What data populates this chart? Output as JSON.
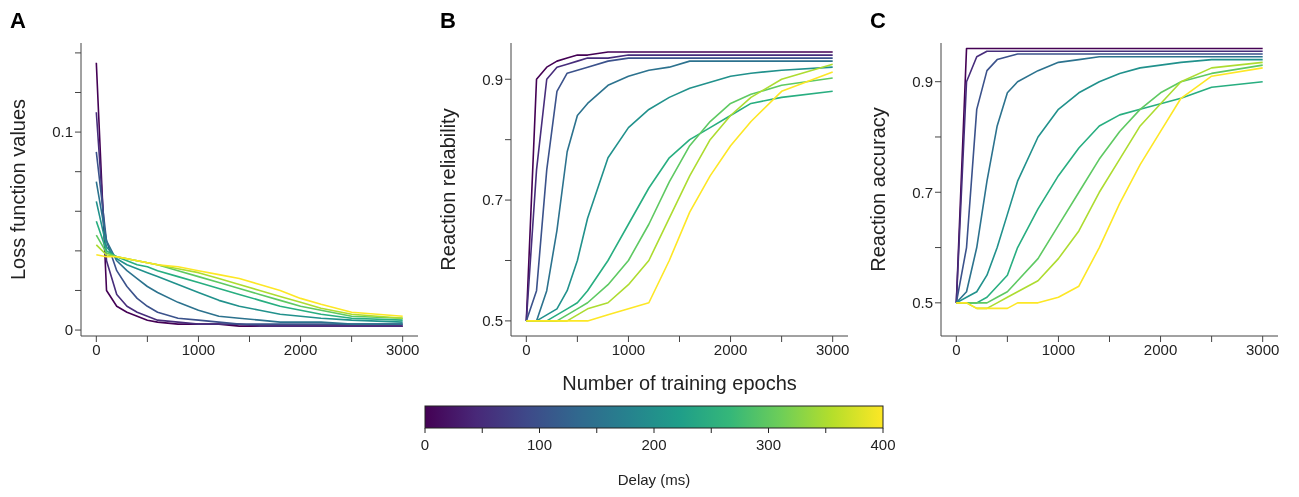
{
  "chart_data": [
    {
      "type": "line",
      "title": "A",
      "ylabel": "Loss function values",
      "x": [
        0,
        100,
        200,
        300,
        400,
        500,
        600,
        800,
        1000,
        1200,
        1400,
        1600,
        1800,
        2000,
        2200,
        2500,
        3000
      ],
      "xlim": [
        -150,
        3150
      ],
      "xticks": [
        0,
        {
          "value": 500,
          "label": null
        },
        1000,
        {
          "value": 1500,
          "label": null
        },
        2000,
        {
          "value": 2500,
          "label": null
        },
        3000
      ],
      "ylim": [
        -0.003,
        0.145
      ],
      "yticks": [
        0,
        {
          "value": 0.02,
          "label": null
        },
        {
          "value": 0.04,
          "label": null
        },
        {
          "value": 0.06,
          "label": null
        },
        {
          "value": 0.08,
          "label": null
        },
        0.1,
        {
          "value": 0.12,
          "label": null
        },
        {
          "value": 0.14,
          "label": null
        }
      ],
      "series": [
        {
          "color": "#440154",
          "values": [
            0.135,
            0.02,
            0.012,
            0.009,
            0.007,
            0.005,
            0.004,
            0.003,
            0.003,
            0.003,
            0.002,
            0.002,
            0.002,
            0.002,
            0.002,
            0.002,
            0.002
          ]
        },
        {
          "color": "#472d7b",
          "values": [
            0.11,
            0.035,
            0.018,
            0.012,
            0.009,
            0.007,
            0.005,
            0.004,
            0.003,
            0.003,
            0.003,
            0.002,
            0.002,
            0.002,
            0.002,
            0.002,
            0.002
          ]
        },
        {
          "color": "#3b528b",
          "values": [
            0.09,
            0.045,
            0.03,
            0.022,
            0.016,
            0.012,
            0.009,
            0.006,
            0.005,
            0.004,
            0.003,
            0.003,
            0.003,
            0.003,
            0.003,
            0.003,
            0.003
          ]
        },
        {
          "color": "#2c728e",
          "values": [
            0.075,
            0.045,
            0.035,
            0.03,
            0.026,
            0.022,
            0.019,
            0.014,
            0.01,
            0.007,
            0.006,
            0.005,
            0.004,
            0.004,
            0.004,
            0.003,
            0.003
          ]
        },
        {
          "color": "#21918c",
          "values": [
            0.065,
            0.042,
            0.036,
            0.033,
            0.031,
            0.029,
            0.027,
            0.023,
            0.019,
            0.015,
            0.012,
            0.01,
            0.008,
            0.007,
            0.006,
            0.005,
            0.004
          ]
        },
        {
          "color": "#28ae80",
          "values": [
            0.055,
            0.04,
            0.037,
            0.035,
            0.033,
            0.032,
            0.03,
            0.027,
            0.024,
            0.021,
            0.018,
            0.015,
            0.012,
            0.01,
            0.008,
            0.006,
            0.005
          ]
        },
        {
          "color": "#5ec962",
          "values": [
            0.048,
            0.039,
            0.037,
            0.036,
            0.035,
            0.034,
            0.033,
            0.03,
            0.027,
            0.024,
            0.021,
            0.018,
            0.015,
            0.012,
            0.01,
            0.007,
            0.006
          ]
        },
        {
          "color": "#addc30",
          "values": [
            0.043,
            0.038,
            0.037,
            0.036,
            0.035,
            0.034,
            0.033,
            0.031,
            0.029,
            0.026,
            0.023,
            0.02,
            0.017,
            0.014,
            0.011,
            0.008,
            0.006
          ]
        },
        {
          "color": "#fde725",
          "values": [
            0.038,
            0.037,
            0.037,
            0.036,
            0.035,
            0.034,
            0.033,
            0.032,
            0.03,
            0.028,
            0.026,
            0.023,
            0.02,
            0.016,
            0.013,
            0.009,
            0.007
          ]
        }
      ]
    },
    {
      "type": "line",
      "title": "B",
      "xlabel": "Number of training epochs",
      "ylabel": "Reaction reliability",
      "clabel": "Delay (ms)",
      "clim": [
        0,
        400
      ],
      "cticks": [
        0,
        {
          "value": 50,
          "label": null
        },
        100,
        {
          "value": 150,
          "label": null
        },
        200,
        {
          "value": 250,
          "label": null
        },
        300,
        {
          "value": 350,
          "label": null
        },
        400
      ],
      "x": [
        0,
        100,
        200,
        300,
        400,
        500,
        600,
        800,
        1000,
        1200,
        1400,
        1600,
        1800,
        2000,
        2200,
        2500,
        3000
      ],
      "xlim": [
        -150,
        3150
      ],
      "xticks": [
        0,
        {
          "value": 500,
          "label": null
        },
        1000,
        {
          "value": 1500,
          "label": null
        },
        2000,
        {
          "value": 2500,
          "label": null
        },
        3000
      ],
      "ylim": [
        0.475,
        0.96
      ],
      "yticks": [
        0.5,
        {
          "value": 0.6,
          "label": null
        },
        0.7,
        {
          "value": 0.8,
          "label": null
        },
        0.9
      ],
      "series": [
        {
          "color": "#440154",
          "values": [
            0.5,
            0.9,
            0.92,
            0.93,
            0.935,
            0.94,
            0.94,
            0.945,
            0.945,
            0.945,
            0.945,
            0.945,
            0.945,
            0.945,
            0.945,
            0.945,
            0.945
          ]
        },
        {
          "color": "#472d7b",
          "values": [
            0.5,
            0.75,
            0.9,
            0.92,
            0.925,
            0.93,
            0.935,
            0.935,
            0.94,
            0.94,
            0.94,
            0.94,
            0.94,
            0.94,
            0.94,
            0.94,
            0.94
          ]
        },
        {
          "color": "#3b528b",
          "values": [
            0.5,
            0.55,
            0.75,
            0.88,
            0.91,
            0.915,
            0.92,
            0.93,
            0.935,
            0.935,
            0.935,
            0.935,
            0.935,
            0.935,
            0.935,
            0.935,
            0.935
          ]
        },
        {
          "color": "#2c728e",
          "values": [
            0.5,
            0.5,
            0.55,
            0.65,
            0.78,
            0.84,
            0.86,
            0.89,
            0.905,
            0.915,
            0.92,
            0.93,
            0.93,
            0.93,
            0.93,
            0.93,
            0.93
          ]
        },
        {
          "color": "#21918c",
          "values": [
            0.5,
            0.5,
            0.51,
            0.52,
            0.55,
            0.6,
            0.67,
            0.77,
            0.82,
            0.85,
            0.87,
            0.885,
            0.895,
            0.905,
            0.91,
            0.915,
            0.92
          ]
        },
        {
          "color": "#28ae80",
          "values": [
            0.5,
            0.5,
            0.5,
            0.51,
            0.52,
            0.53,
            0.55,
            0.6,
            0.66,
            0.72,
            0.77,
            0.8,
            0.82,
            0.84,
            0.86,
            0.87,
            0.88
          ]
        },
        {
          "color": "#5ec962",
          "values": [
            0.5,
            0.5,
            0.5,
            0.5,
            0.51,
            0.52,
            0.53,
            0.56,
            0.6,
            0.66,
            0.73,
            0.79,
            0.83,
            0.86,
            0.875,
            0.89,
            0.902
          ]
        },
        {
          "color": "#addc30",
          "values": [
            0.5,
            0.5,
            0.5,
            0.5,
            0.5,
            0.51,
            0.52,
            0.53,
            0.56,
            0.6,
            0.67,
            0.74,
            0.8,
            0.84,
            0.87,
            0.9,
            0.925
          ]
        },
        {
          "color": "#fde725",
          "values": [
            0.5,
            0.5,
            0.5,
            0.5,
            0.5,
            0.5,
            0.5,
            0.51,
            0.52,
            0.53,
            0.6,
            0.68,
            0.74,
            0.79,
            0.83,
            0.88,
            0.912
          ]
        }
      ]
    },
    {
      "type": "line",
      "title": "C",
      "ylabel": "Reaction accuracy",
      "x": [
        0,
        100,
        200,
        300,
        400,
        500,
        600,
        800,
        1000,
        1200,
        1400,
        1600,
        1800,
        2000,
        2200,
        2500,
        3000
      ],
      "xlim": [
        -150,
        3150
      ],
      "xticks": [
        0,
        {
          "value": 500,
          "label": null
        },
        1000,
        {
          "value": 1500,
          "label": null
        },
        2000,
        {
          "value": 2500,
          "label": null
        },
        3000
      ],
      "ylim": [
        0.44,
        0.97
      ],
      "yticks": [
        0.5,
        {
          "value": 0.6,
          "label": null
        },
        0.7,
        {
          "value": 0.8,
          "label": null
        },
        0.9
      ],
      "series": [
        {
          "color": "#440154",
          "values": [
            0.5,
            0.96,
            0.96,
            0.96,
            0.96,
            0.96,
            0.96,
            0.96,
            0.96,
            0.96,
            0.96,
            0.96,
            0.96,
            0.96,
            0.96,
            0.96,
            0.96
          ]
        },
        {
          "color": "#472d7b",
          "values": [
            0.5,
            0.9,
            0.945,
            0.955,
            0.955,
            0.955,
            0.955,
            0.955,
            0.955,
            0.955,
            0.955,
            0.955,
            0.955,
            0.955,
            0.955,
            0.955,
            0.955
          ]
        },
        {
          "color": "#3b528b",
          "values": [
            0.5,
            0.6,
            0.85,
            0.92,
            0.94,
            0.945,
            0.95,
            0.95,
            0.95,
            0.95,
            0.95,
            0.95,
            0.95,
            0.95,
            0.95,
            0.95,
            0.95
          ]
        },
        {
          "color": "#2c728e",
          "values": [
            0.5,
            0.52,
            0.6,
            0.72,
            0.82,
            0.88,
            0.9,
            0.92,
            0.935,
            0.94,
            0.945,
            0.945,
            0.945,
            0.945,
            0.945,
            0.945,
            0.945
          ]
        },
        {
          "color": "#21918c",
          "values": [
            0.5,
            0.51,
            0.52,
            0.55,
            0.6,
            0.66,
            0.72,
            0.8,
            0.85,
            0.88,
            0.9,
            0.915,
            0.925,
            0.93,
            0.935,
            0.94,
            0.94
          ]
        },
        {
          "color": "#28ae80",
          "values": [
            0.5,
            0.5,
            0.5,
            0.51,
            0.53,
            0.55,
            0.6,
            0.67,
            0.73,
            0.78,
            0.82,
            0.84,
            0.85,
            0.86,
            0.87,
            0.89,
            0.9
          ]
        },
        {
          "color": "#5ec962",
          "values": [
            0.5,
            0.5,
            0.5,
            0.5,
            0.51,
            0.52,
            0.54,
            0.58,
            0.64,
            0.7,
            0.76,
            0.81,
            0.85,
            0.88,
            0.9,
            0.915,
            0.93
          ]
        },
        {
          "color": "#addc30",
          "values": [
            0.5,
            0.5,
            0.49,
            0.49,
            0.5,
            0.51,
            0.52,
            0.54,
            0.58,
            0.63,
            0.7,
            0.76,
            0.82,
            0.86,
            0.9,
            0.925,
            0.935
          ]
        },
        {
          "color": "#fde725",
          "values": [
            0.5,
            0.5,
            0.49,
            0.49,
            0.49,
            0.49,
            0.5,
            0.5,
            0.51,
            0.53,
            0.6,
            0.68,
            0.75,
            0.81,
            0.87,
            0.91,
            0.925
          ]
        }
      ]
    }
  ]
}
